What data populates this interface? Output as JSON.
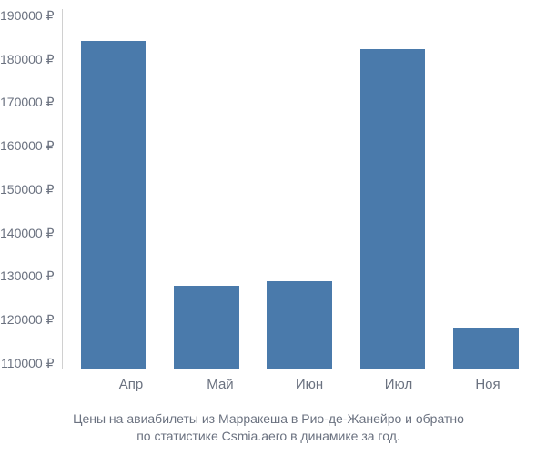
{
  "chart": {
    "type": "bar",
    "categories": [
      "Апр",
      "Май",
      "Июн",
      "Июл",
      "Ноя"
    ],
    "values": [
      183000,
      128500,
      129500,
      181000,
      119000
    ],
    "bar_color": "#4a7aab",
    "ylim": [
      110000,
      190000
    ],
    "ytick_step": 10000,
    "currency_symbol": "₽",
    "yticks": [
      "190000 ₽",
      "180000 ₽",
      "170000 ₽",
      "160000 ₽",
      "150000 ₽",
      "140000 ₽",
      "130000 ₽",
      "120000 ₽",
      "110000 ₽"
    ],
    "background_color": "#ffffff",
    "axis_text_color": "#6b7280",
    "axis_line_color": "#d0d0d0",
    "tick_fontsize": 14,
    "bar_width": 0.7
  },
  "caption": {
    "line1": "Цены на авиабилеты из Марракеша в Рио-де-Жанейро и обратно",
    "line2": "по статистике Csmia.aero в динамике за год."
  }
}
